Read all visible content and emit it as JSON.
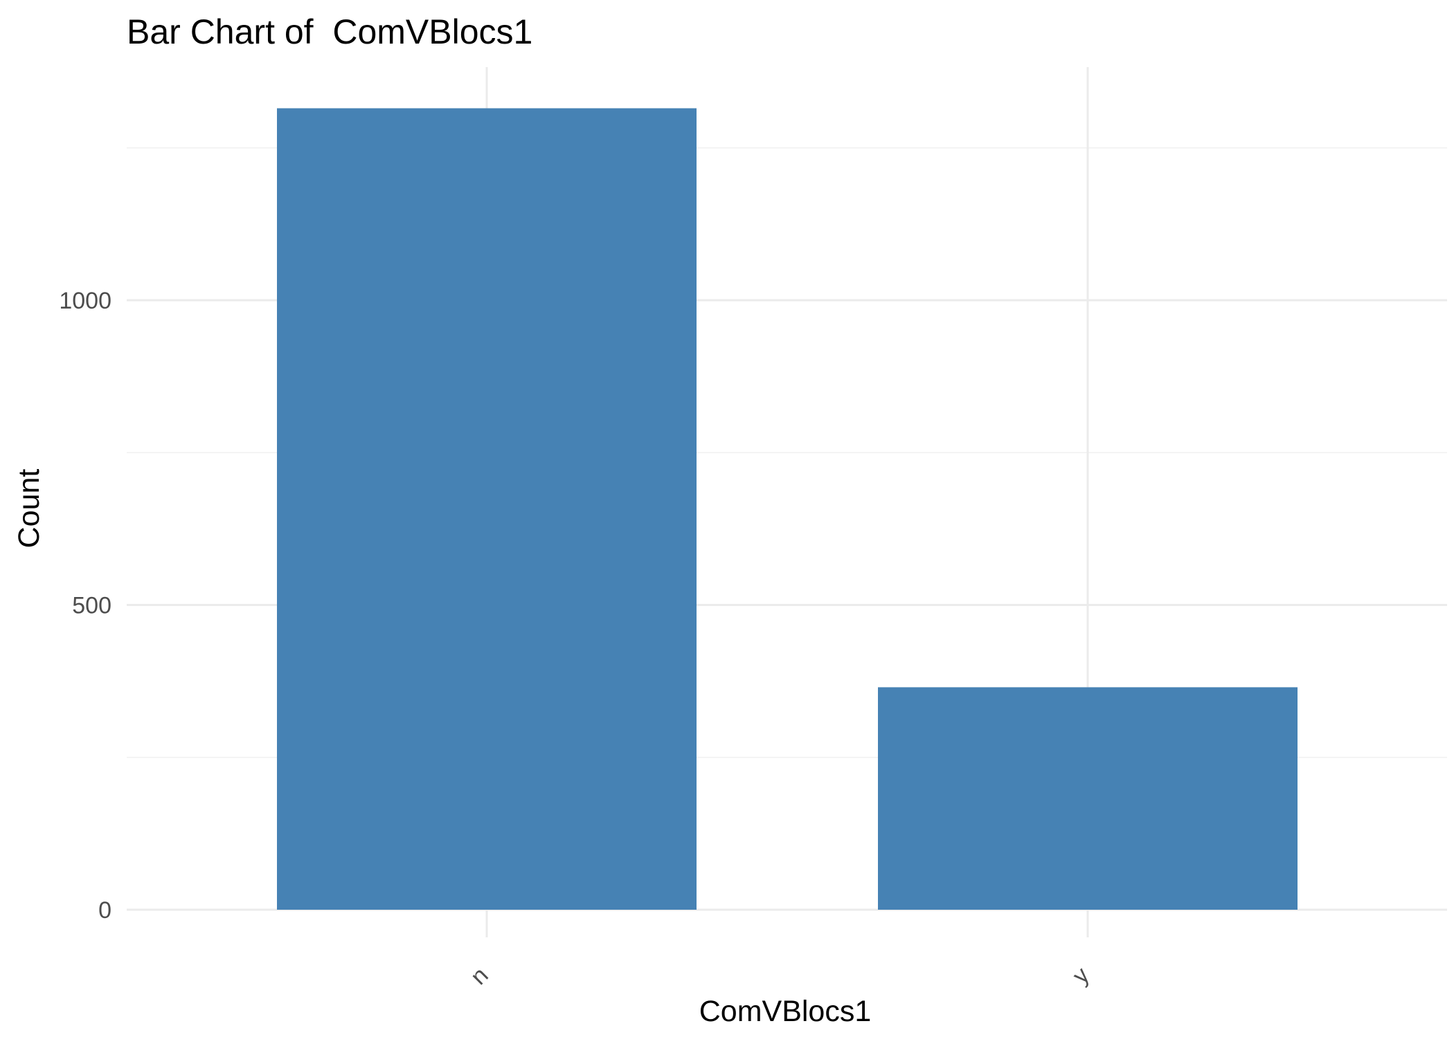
{
  "chart_data": {
    "type": "bar",
    "title": "Bar Chart of  ComVBlocs1",
    "xlabel": "ComVBlocs1",
    "ylabel": "Count",
    "categories": [
      "n",
      "y"
    ],
    "values": [
      1315,
      365
    ],
    "ylim": [
      0,
      1380
    ],
    "yticks": [
      0,
      500,
      1000
    ],
    "ytick_labels": [
      "0",
      "500",
      "1000"
    ],
    "bar_color": "#4682B4",
    "grid": true,
    "legend": "none"
  }
}
